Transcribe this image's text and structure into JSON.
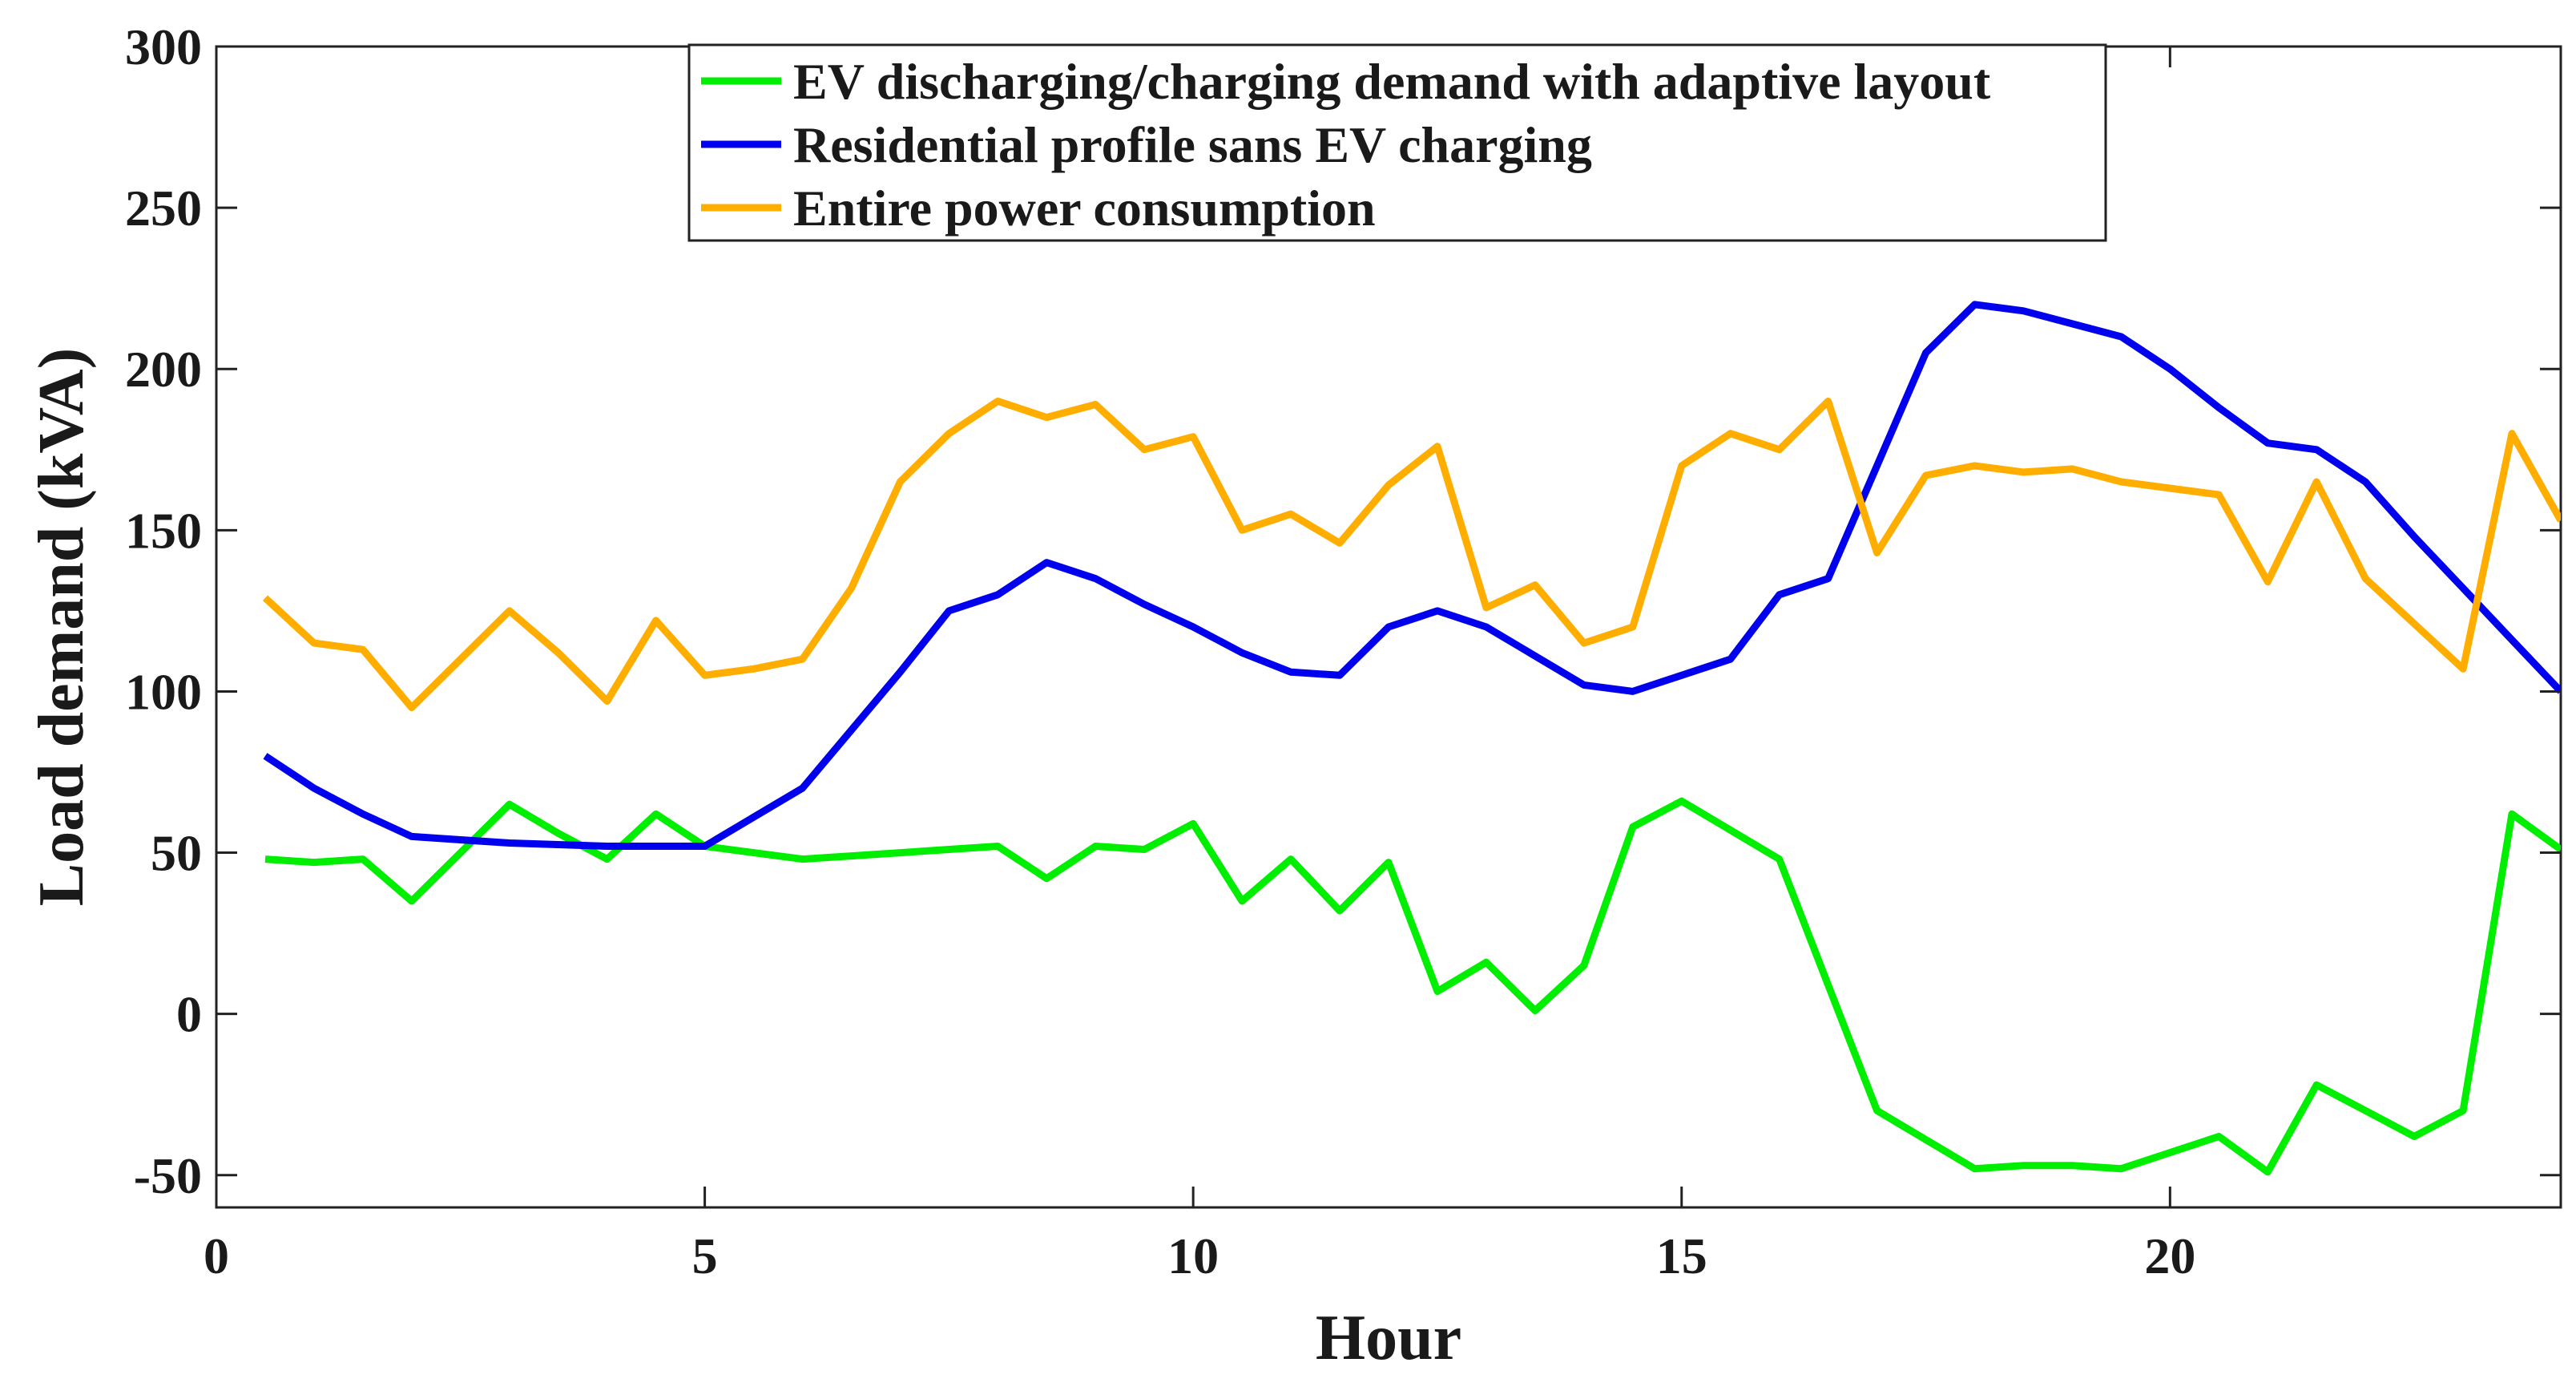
{
  "chart_data": {
    "type": "line",
    "title": "",
    "xlabel": "Hour",
    "ylabel": "Load demand (kVA)",
    "xlim": [
      0,
      24
    ],
    "ylim": [
      -60,
      300
    ],
    "xticks": [
      0,
      5,
      10,
      15,
      20
    ],
    "yticks": [
      -50,
      0,
      50,
      100,
      150,
      200,
      250,
      300
    ],
    "grid": false,
    "legend_position": "top-center",
    "x": [
      0.5,
      1,
      1.5,
      2,
      2.5,
      3,
      3.5,
      4,
      4.5,
      5,
      5.5,
      6,
      6.5,
      7,
      7.5,
      8,
      8.5,
      9,
      9.5,
      10,
      10.5,
      11,
      11.5,
      12,
      12.5,
      13,
      13.5,
      14,
      14.5,
      15,
      15.5,
      16,
      16.5,
      17,
      17.5,
      18,
      18.5,
      19,
      19.5,
      20,
      20.5,
      21,
      21.5,
      22,
      22.5,
      23,
      23.5,
      24
    ],
    "series": [
      {
        "name": "EV discharging/charging demand with adaptive layout",
        "color": "#00ee00",
        "values": [
          48,
          47,
          48,
          35,
          50,
          65,
          56,
          48,
          62,
          52,
          50,
          48,
          49,
          50,
          51,
          52,
          42,
          52,
          51,
          59,
          35,
          48,
          32,
          47,
          7,
          16,
          1,
          15,
          58,
          66,
          57,
          48,
          9,
          -30,
          -39,
          -48,
          -47,
          -47,
          -48,
          -43,
          -38,
          -49,
          -22,
          -30,
          -38,
          -30,
          62,
          51
        ]
      },
      {
        "name": "Residential profile sans EV charging",
        "color": "#0000ee",
        "values": [
          80,
          70,
          62,
          55,
          54,
          53,
          52.5,
          52,
          52,
          52,
          61,
          70,
          88,
          106,
          125,
          130,
          140,
          135,
          127,
          120,
          112,
          106,
          105,
          120,
          125,
          120,
          111,
          102,
          100,
          105,
          110,
          130,
          135,
          170,
          205,
          220,
          218,
          214,
          210,
          200,
          188,
          177,
          175,
          165,
          148,
          132,
          116,
          100
        ]
      },
      {
        "name": "Entire power consumption",
        "color": "#ffae00",
        "values": [
          129,
          115,
          113,
          95,
          110,
          125,
          112,
          97,
          122,
          105,
          107,
          110,
          132,
          165,
          180,
          190,
          185,
          189,
          175,
          179,
          150,
          155,
          146,
          164,
          176,
          126,
          133,
          115,
          120,
          170,
          180,
          175,
          190,
          143,
          167,
          170,
          168,
          169,
          165,
          163,
          161,
          134,
          165,
          135,
          121,
          107,
          180,
          153
        ]
      }
    ]
  }
}
